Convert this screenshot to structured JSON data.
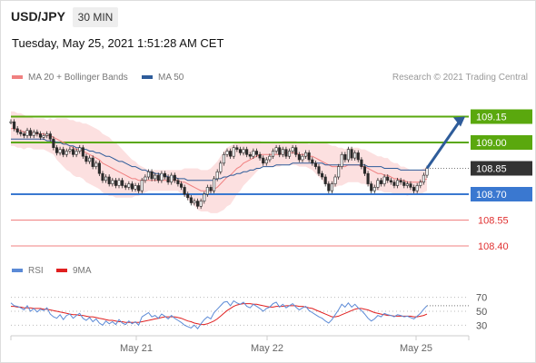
{
  "header": {
    "pair": "USD/JPY",
    "interval": "30 MIN",
    "datetime": "Tuesday, May 25, 2021 1:51:28 AM CET"
  },
  "legend": {
    "ma": {
      "label": "MA 20 + Bollinger Bands",
      "color": "#f08080"
    },
    "ma50": {
      "label": "MA 50",
      "color": "#2e5c9a"
    },
    "rsi": {
      "label": "RSI",
      "color": "#5b8ad6"
    },
    "ma9": {
      "label": "9MA",
      "color": "#e02020"
    }
  },
  "source": "Research © 2021 Trading Central",
  "colors": {
    "resistance": "#5aa80e",
    "support": "#3a78d0",
    "target": "#e03030",
    "price": "#333333",
    "arrow": "#2e5c9a",
    "up": "#2a2a2a",
    "down": "#2a2a2a"
  },
  "chart_data": [
    {
      "type": "candlestick",
      "title": "",
      "x_labels": [
        "May 21",
        "May 22",
        "May 25"
      ],
      "ylim": [
        108.3,
        109.3
      ],
      "levels": [
        {
          "value": 109.15,
          "label": "109.15",
          "kind": "resistance"
        },
        {
          "value": 109.0,
          "label": "109.00",
          "kind": "resistance"
        },
        {
          "value": 108.85,
          "label": "108.85",
          "kind": "price"
        },
        {
          "value": 108.7,
          "label": "108.70",
          "kind": "support"
        },
        {
          "value": 108.55,
          "label": "108.55",
          "kind": "target"
        },
        {
          "value": 108.4,
          "label": "108.40",
          "kind": "target"
        }
      ],
      "close": [
        109.12,
        109.08,
        109.06,
        109.05,
        109.04,
        109.07,
        109.04,
        109.06,
        109.05,
        109.03,
        109.04,
        109.05,
        109.02,
        108.97,
        108.94,
        108.96,
        108.93,
        108.95,
        108.96,
        108.93,
        108.95,
        108.97,
        108.92,
        108.89,
        108.91,
        108.86,
        108.88,
        108.82,
        108.78,
        108.8,
        108.76,
        108.78,
        108.75,
        108.78,
        108.75,
        108.74,
        108.76,
        108.73,
        108.75,
        108.72,
        108.78,
        108.8,
        108.83,
        108.79,
        108.81,
        108.78,
        108.82,
        108.8,
        108.77,
        108.81,
        108.78,
        108.76,
        108.74,
        108.7,
        108.68,
        108.65,
        108.66,
        108.63,
        108.66,
        108.7,
        108.74,
        108.72,
        108.79,
        108.83,
        108.88,
        108.93,
        108.95,
        108.92,
        108.97,
        108.96,
        108.94,
        108.96,
        108.93,
        108.92,
        108.95,
        108.93,
        108.91,
        108.88,
        108.9,
        108.92,
        108.95,
        108.97,
        108.93,
        108.96,
        108.92,
        108.95,
        108.97,
        108.93,
        108.9,
        108.92,
        108.94,
        108.9,
        108.88,
        108.86,
        108.82,
        108.8,
        108.76,
        108.72,
        108.76,
        108.8,
        108.86,
        108.93,
        108.9,
        108.96,
        108.91,
        108.94,
        108.9,
        108.86,
        108.82,
        108.76,
        108.72,
        108.74,
        108.78,
        108.76,
        108.8,
        108.78,
        108.77,
        108.75,
        108.78,
        108.77,
        108.75,
        108.76,
        108.74,
        108.72,
        108.75,
        108.77,
        108.81,
        108.85
      ],
      "ma20": [
        109.08,
        109.08,
        109.07,
        109.07,
        109.06,
        109.06,
        109.06,
        109.05,
        109.05,
        109.05,
        109.05,
        109.04,
        109.04,
        109.03,
        109.02,
        109.01,
        109.0,
        108.99,
        108.98,
        108.97,
        108.96,
        108.96,
        108.95,
        108.94,
        108.93,
        108.92,
        108.91,
        108.9,
        108.88,
        108.87,
        108.86,
        108.85,
        108.84,
        108.83,
        108.82,
        108.81,
        108.8,
        108.79,
        108.79,
        108.78,
        108.78,
        108.78,
        108.78,
        108.78,
        108.78,
        108.78,
        108.78,
        108.78,
        108.78,
        108.78,
        108.78,
        108.78,
        108.77,
        108.77,
        108.76,
        108.75,
        108.74,
        108.73,
        108.72,
        108.72,
        108.72,
        108.72,
        108.73,
        108.74,
        108.76,
        108.78,
        108.8,
        108.81,
        108.83,
        108.85,
        108.86,
        108.88,
        108.89,
        108.9,
        108.91,
        108.92,
        108.93,
        108.93,
        108.93,
        108.93,
        108.93,
        108.93,
        108.93,
        108.94,
        108.94,
        108.94,
        108.94,
        108.94,
        108.93,
        108.93,
        108.93,
        108.92,
        108.92,
        108.91,
        108.9,
        108.89,
        108.88,
        108.87,
        108.86,
        108.86,
        108.86,
        108.86,
        108.86,
        108.87,
        108.87,
        108.87,
        108.87,
        108.86,
        108.86,
        108.85,
        108.84,
        108.83,
        108.82,
        108.82,
        108.81,
        108.81,
        108.8,
        108.79,
        108.79,
        108.78,
        108.78,
        108.77,
        108.77,
        108.77,
        108.77,
        108.77,
        108.78,
        108.79
      ],
      "ma50": [
        109.02,
        109.02,
        109.02,
        109.02,
        109.02,
        109.02,
        109.02,
        109.02,
        109.02,
        109.02,
        109.02,
        109.01,
        109.01,
        109.01,
        109.0,
        109.0,
        108.99,
        108.99,
        108.98,
        108.98,
        108.97,
        108.97,
        108.96,
        108.96,
        108.95,
        108.95,
        108.94,
        108.94,
        108.93,
        108.92,
        108.92,
        108.91,
        108.9,
        108.89,
        108.89,
        108.88,
        108.87,
        108.86,
        108.86,
        108.85,
        108.84,
        108.84,
        108.83,
        108.83,
        108.82,
        108.82,
        108.81,
        108.81,
        108.8,
        108.8,
        108.8,
        108.79,
        108.79,
        108.79,
        108.78,
        108.78,
        108.78,
        108.78,
        108.78,
        108.78,
        108.78,
        108.78,
        108.78,
        108.79,
        108.79,
        108.8,
        108.8,
        108.81,
        108.81,
        108.82,
        108.82,
        108.83,
        108.83,
        108.84,
        108.84,
        108.85,
        108.85,
        108.86,
        108.86,
        108.86,
        108.86,
        108.87,
        108.87,
        108.87,
        108.87,
        108.87,
        108.88,
        108.88,
        108.88,
        108.88,
        108.88,
        108.88,
        108.88,
        108.88,
        108.88,
        108.88,
        108.87,
        108.87,
        108.87,
        108.87,
        108.87,
        108.87,
        108.87,
        108.87,
        108.87,
        108.87,
        108.87,
        108.87,
        108.87,
        108.86,
        108.86,
        108.86,
        108.86,
        108.86,
        108.85,
        108.85,
        108.85,
        108.85,
        108.85,
        108.84,
        108.84,
        108.84,
        108.84,
        108.84,
        108.84,
        108.84,
        108.84,
        108.84
      ],
      "band_width": [
        0.1,
        0.1,
        0.1,
        0.1,
        0.1,
        0.09,
        0.09,
        0.09,
        0.09,
        0.09,
        0.09,
        0.09,
        0.1,
        0.1,
        0.12,
        0.13,
        0.14,
        0.15,
        0.15,
        0.16,
        0.16,
        0.16,
        0.16,
        0.17,
        0.17,
        0.17,
        0.17,
        0.17,
        0.17,
        0.17,
        0.17,
        0.16,
        0.16,
        0.15,
        0.14,
        0.13,
        0.12,
        0.11,
        0.1,
        0.09,
        0.08,
        0.07,
        0.06,
        0.06,
        0.06,
        0.06,
        0.06,
        0.06,
        0.06,
        0.06,
        0.06,
        0.06,
        0.07,
        0.08,
        0.09,
        0.1,
        0.11,
        0.12,
        0.12,
        0.12,
        0.12,
        0.13,
        0.14,
        0.15,
        0.16,
        0.17,
        0.17,
        0.17,
        0.16,
        0.15,
        0.14,
        0.13,
        0.12,
        0.11,
        0.1,
        0.09,
        0.08,
        0.07,
        0.07,
        0.07,
        0.07,
        0.07,
        0.07,
        0.07,
        0.07,
        0.07,
        0.07,
        0.07,
        0.07,
        0.07,
        0.07,
        0.07,
        0.08,
        0.09,
        0.1,
        0.11,
        0.12,
        0.12,
        0.12,
        0.12,
        0.11,
        0.11,
        0.1,
        0.1,
        0.1,
        0.1,
        0.1,
        0.1,
        0.1,
        0.1,
        0.1,
        0.1,
        0.1,
        0.1,
        0.1,
        0.1,
        0.09,
        0.09,
        0.09,
        0.08,
        0.08,
        0.08,
        0.07,
        0.07,
        0.07,
        0.07,
        0.07,
        0.07
      ],
      "projection": {
        "from": 108.85,
        "to": 109.15
      }
    },
    {
      "type": "line",
      "title": "",
      "yticks": [
        70,
        50,
        30
      ],
      "ylim": [
        20,
        80
      ],
      "series": [
        {
          "name": "RSI",
          "values": [
            62,
            58,
            57,
            55,
            52,
            58,
            50,
            54,
            49,
            53,
            51,
            55,
            46,
            42,
            40,
            45,
            38,
            44,
            46,
            40,
            44,
            47,
            40,
            37,
            41,
            35,
            39,
            33,
            30,
            36,
            32,
            35,
            31,
            38,
            33,
            31,
            36,
            32,
            35,
            30,
            42,
            45,
            48,
            42,
            44,
            40,
            46,
            43,
            39,
            44,
            40,
            37,
            34,
            30,
            28,
            26,
            30,
            25,
            32,
            38,
            42,
            39,
            48,
            53,
            58,
            63,
            64,
            58,
            65,
            62,
            60,
            63,
            57,
            55,
            60,
            57,
            54,
            50,
            54,
            56,
            61,
            63,
            56,
            60,
            55,
            58,
            61,
            56,
            52,
            55,
            57,
            51,
            48,
            45,
            42,
            40,
            36,
            33,
            38,
            45,
            52,
            60,
            56,
            62,
            56,
            60,
            55,
            51,
            46,
            40,
            36,
            39,
            44,
            42,
            47,
            45,
            44,
            42,
            45,
            44,
            42,
            43,
            41,
            39,
            43,
            47,
            53,
            58
          ]
        },
        {
          "name": "9MA",
          "values": [
            57,
            57,
            56,
            56,
            55,
            55,
            55,
            54,
            54,
            54,
            53,
            53,
            52,
            51,
            50,
            49,
            48,
            47,
            46,
            45,
            45,
            44,
            44,
            43,
            42,
            42,
            41,
            40,
            39,
            38,
            37,
            37,
            36,
            35,
            35,
            34,
            34,
            34,
            34,
            34,
            35,
            36,
            37,
            38,
            39,
            40,
            41,
            42,
            42,
            42,
            42,
            41,
            40,
            38,
            36,
            35,
            33,
            32,
            31,
            31,
            32,
            34,
            36,
            39,
            43,
            47,
            51,
            54,
            57,
            59,
            60,
            61,
            61,
            61,
            60,
            60,
            59,
            58,
            57,
            56,
            56,
            57,
            57,
            57,
            58,
            58,
            58,
            58,
            57,
            57,
            56,
            55,
            54,
            52,
            50,
            48,
            46,
            44,
            42,
            42,
            43,
            45,
            47,
            49,
            51,
            53,
            54,
            54,
            53,
            52,
            50,
            48,
            47,
            46,
            45,
            44,
            44,
            43,
            43,
            43,
            43,
            43,
            43,
            42,
            42,
            43,
            44,
            46
          ]
        }
      ]
    }
  ]
}
